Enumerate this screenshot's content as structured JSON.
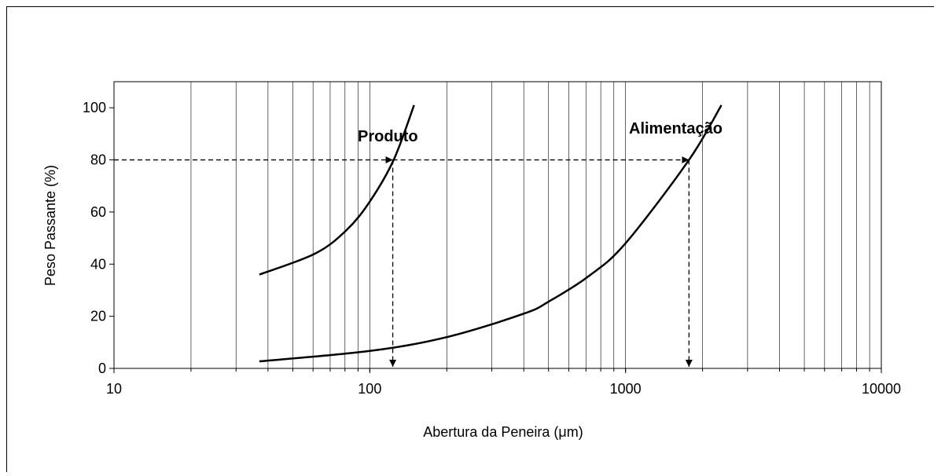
{
  "chart_data": {
    "type": "line",
    "xlabel": "Abertura da Peneira (μm)",
    "ylabel": "Peso Passante (%)",
    "xscale": "log",
    "xlim": [
      10,
      10000
    ],
    "xticks": [
      10,
      100,
      1000,
      10000
    ],
    "xgrid": [
      20,
      30,
      40,
      50,
      60,
      70,
      80,
      90,
      100,
      200,
      300,
      400,
      500,
      600,
      700,
      800,
      900,
      1000,
      2000,
      3000,
      4000,
      5000,
      6000,
      7000,
      8000,
      9000
    ],
    "ylim": [
      0,
      110
    ],
    "yticks": [
      0,
      20,
      40,
      60,
      80,
      100
    ],
    "series": [
      {
        "name": "Produto",
        "color": "#000000",
        "x": [
          37,
          61,
          81,
          100,
          124,
          149
        ],
        "values": [
          36,
          44,
          53,
          64,
          80,
          101
        ]
      },
      {
        "name": "Alimentação",
        "color": "#000000",
        "x": [
          37,
          100,
          200,
          400,
          508,
          720,
          1000,
          1770,
          2370
        ],
        "values": [
          2.7,
          6.7,
          12,
          21,
          26,
          35.5,
          48,
          80,
          101
        ]
      }
    ],
    "reference": {
      "y": 80,
      "x": [
        123,
        1770
      ]
    }
  }
}
